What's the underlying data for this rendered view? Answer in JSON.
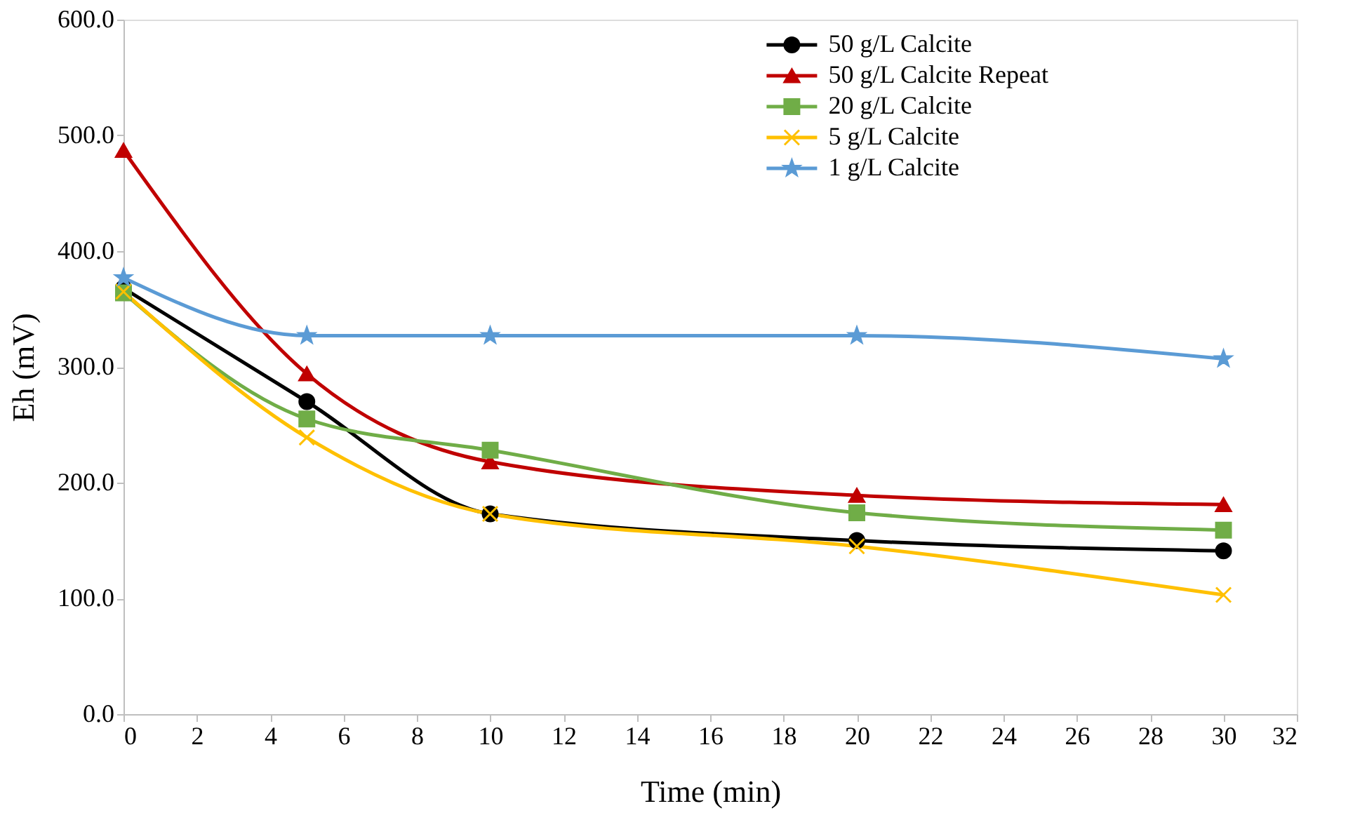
{
  "chart_data": {
    "type": "line",
    "xlabel": "Time (min)",
    "ylabel": "Eh (mV)",
    "x": [
      0,
      5,
      10,
      20,
      30
    ],
    "series": [
      {
        "name": "50 g/L Calcite",
        "color": "#000000",
        "marker": "circle",
        "values": [
          368,
          270,
          173,
          150,
          141
        ]
      },
      {
        "name": "50 g/L Calcite Repeat",
        "color": "#c00000",
        "marker": "triangle",
        "values": [
          487,
          294,
          218,
          189,
          181
        ]
      },
      {
        "name": "20 g/L Calcite",
        "color": "#70ad47",
        "marker": "square",
        "values": [
          364,
          255,
          228,
          174,
          159
        ]
      },
      {
        "name": "5 g/L Calcite",
        "color": "#ffc000",
        "marker": "cross",
        "values": [
          365,
          239,
          173,
          145,
          103
        ]
      },
      {
        "name": "1 g/L Calcite",
        "color": "#5b9bd5",
        "marker": "star",
        "values": [
          377,
          327,
          327,
          327,
          307
        ]
      }
    ],
    "xlim": [
      0,
      32
    ],
    "xticks": [
      0,
      2,
      4,
      6,
      8,
      10,
      12,
      14,
      16,
      18,
      20,
      22,
      24,
      26,
      28,
      30,
      32
    ],
    "ylim": [
      0,
      600
    ],
    "yticks": [
      {
        "value": 0,
        "label": "0.0"
      },
      {
        "value": 100,
        "label": "100.0"
      },
      {
        "value": 200,
        "label": "200.0"
      },
      {
        "value": 300,
        "label": "300.0"
      },
      {
        "value": 400,
        "label": "400.0"
      },
      {
        "value": 500,
        "label": "500.0"
      },
      {
        "value": 600,
        "label": "600.0"
      }
    ],
    "grid": false,
    "legend": "top right",
    "line_style": "solid"
  }
}
